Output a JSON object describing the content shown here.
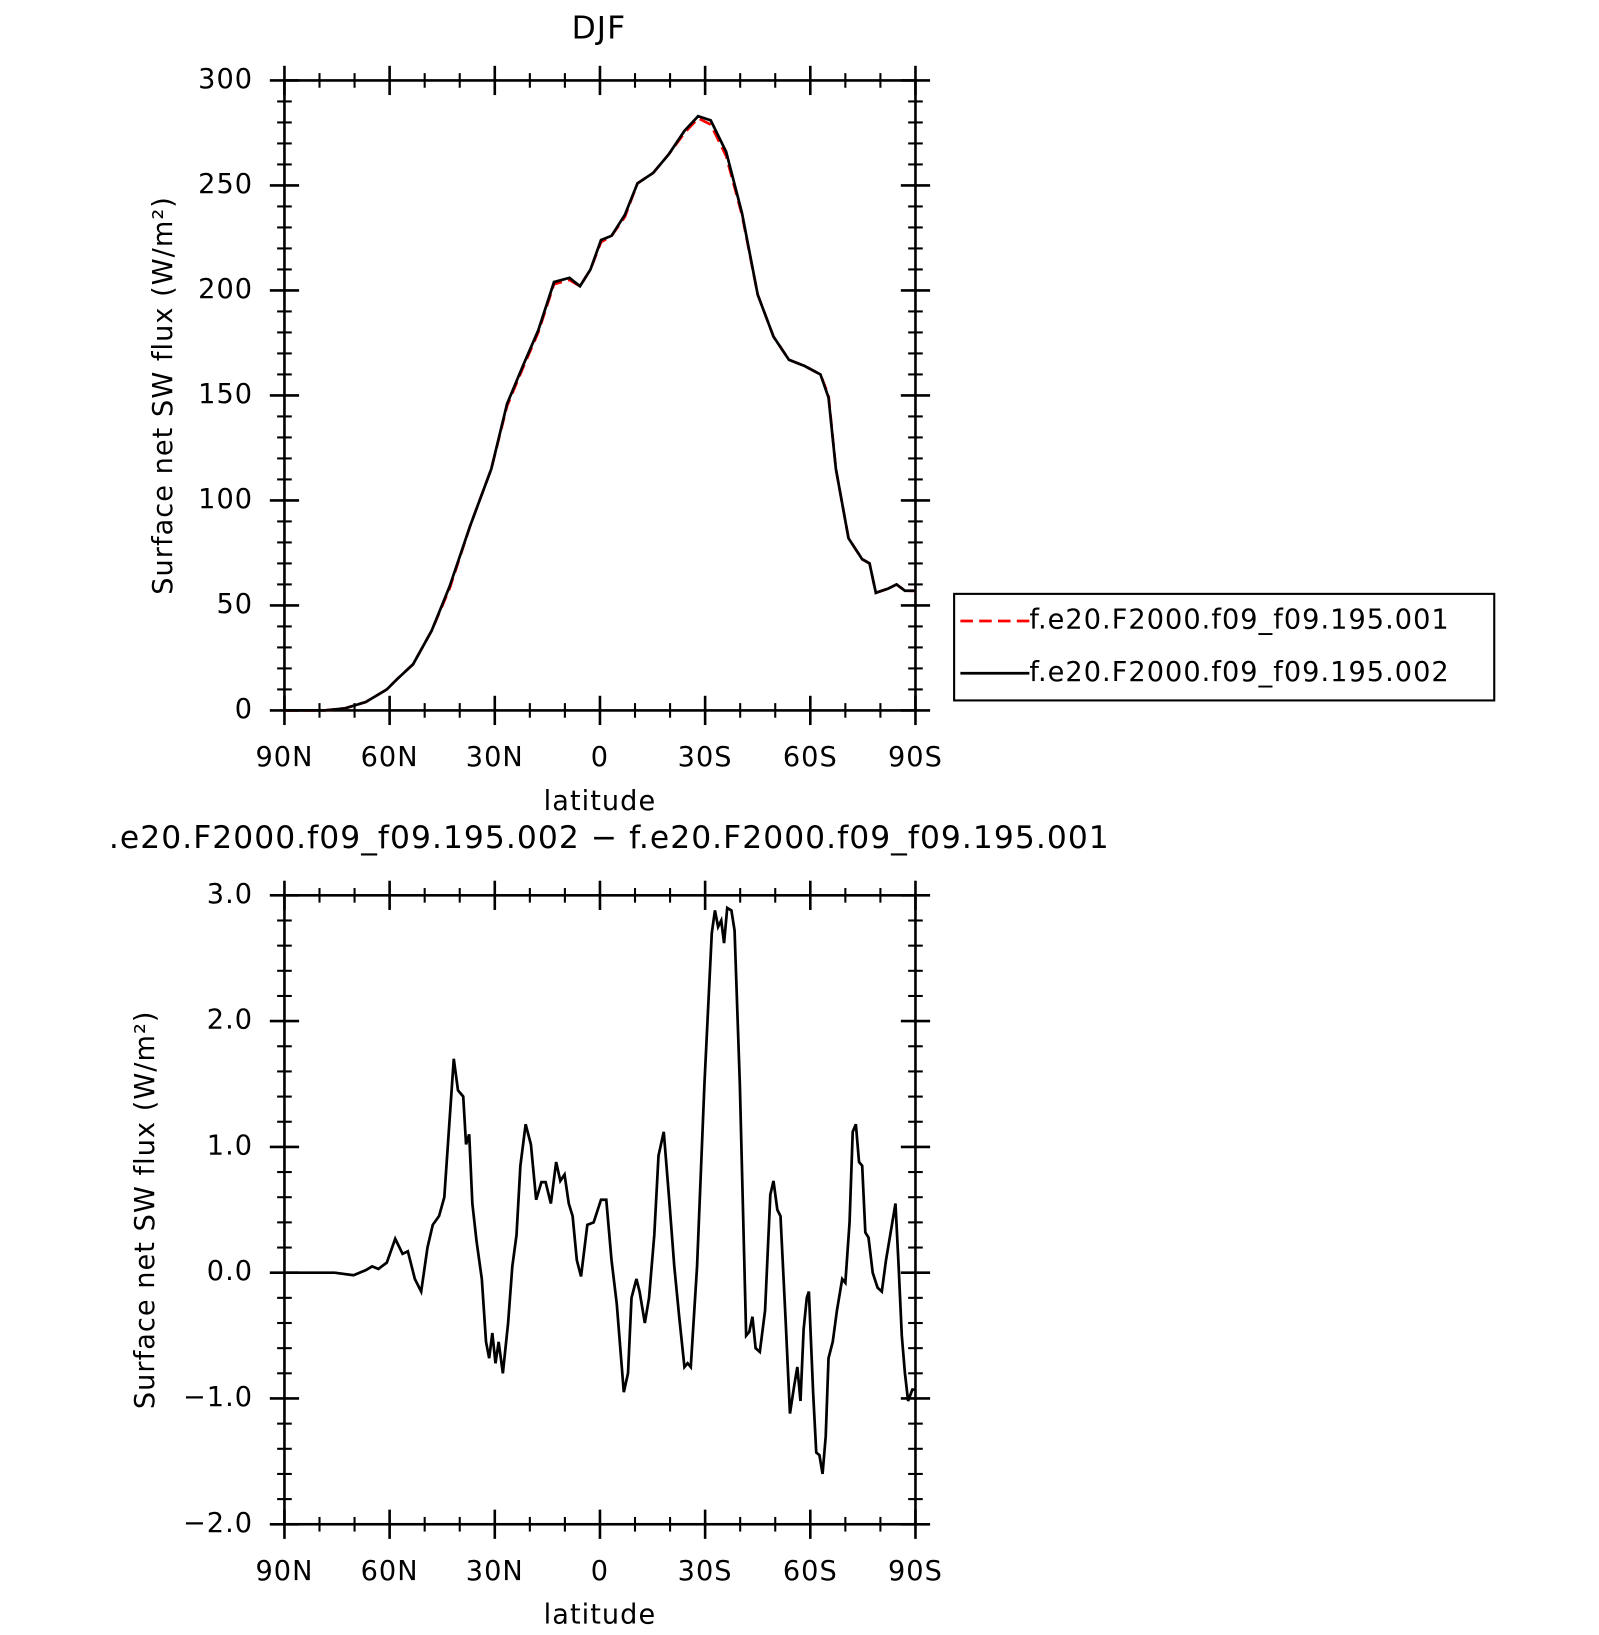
{
  "chart_data": [
    {
      "type": "line",
      "title": "DJF",
      "xlabel": "latitude",
      "ylabel": "Surface net SW flux (W/m²)",
      "x": [
        90,
        84,
        78.7,
        72.7,
        66.8,
        60.8,
        57.8,
        53.3,
        48,
        42.9,
        37,
        31,
        26.5,
        22,
        17.6,
        13.1,
        8.7,
        5.7,
        2.7,
        -0.3,
        -3.3,
        -7.1,
        -10.7,
        -15.2,
        -19.7,
        -24.1,
        -28,
        -31.6,
        -36,
        -40.5,
        -45,
        -49.5,
        -53.9,
        -58.4,
        -62.9,
        -65.2,
        -67.3,
        -70.9,
        -74.8,
        -76.9,
        -78.7,
        -82.2,
        -84.6,
        -87,
        -90
      ],
      "series": [
        {
          "name": "f.e20.F2000.f09_f09.195.001",
          "color": "#ff0000",
          "line_style": "dashed",
          "values": [
            0,
            0,
            0,
            1,
            4,
            10,
            15,
            22,
            38,
            58,
            88,
            115,
            145,
            163,
            180,
            203,
            205,
            202,
            210,
            223,
            226,
            235,
            251,
            256,
            265,
            275,
            282,
            279,
            264,
            236,
            198,
            178,
            167,
            164,
            160,
            150,
            115,
            82,
            72,
            70,
            56,
            58,
            60,
            57,
            57
          ]
        },
        {
          "name": "f.e20.F2000.f09_f09.195.002",
          "color": "#000000",
          "line_style": "solid",
          "values": [
            0,
            0,
            0,
            1,
            4,
            10,
            15,
            22,
            38,
            59,
            88,
            115,
            146,
            164,
            181,
            204,
            206,
            202,
            210,
            224,
            226,
            236,
            251,
            256,
            265,
            276,
            283,
            281,
            266,
            237,
            198,
            178,
            167,
            164,
            160,
            149,
            115,
            82,
            72,
            70,
            56,
            58,
            60,
            57,
            57
          ]
        }
      ],
      "xlim": [
        90,
        -90
      ],
      "xticks": [
        {
          "value": 90,
          "label": "90N"
        },
        {
          "value": 60,
          "label": "60N"
        },
        {
          "value": 30,
          "label": "30N"
        },
        0,
        {
          "value": -30,
          "label": "30S"
        },
        {
          "value": -60,
          "label": "60S"
        },
        {
          "value": -90,
          "label": "90S"
        }
      ],
      "ylim": [
        0,
        300
      ],
      "yticks": [
        0,
        50,
        100,
        150,
        200,
        250,
        300
      ],
      "legend": "right"
    },
    {
      "type": "line",
      "title": ".e20.F2000.f09_f09.195.002 − f.e20.F2000.f09_f09.195.001",
      "xlabel": "latitude",
      "ylabel": "Surface net SW flux (W/m²)",
      "x": [
        90,
        75.7,
        70.3,
        66.8,
        65,
        63.2,
        60.8,
        58.4,
        56.3,
        54.8,
        52.8,
        51,
        49.2,
        47.7,
        45.9,
        44.4,
        41.7,
        40.5,
        39,
        38.2,
        37.3,
        36.4,
        35.2,
        33.7,
        32.5,
        31.6,
        30.7,
        29.8,
        28.9,
        27.7,
        26.2,
        25,
        23.8,
        22.7,
        21.2,
        19.7,
        18.2,
        16.7,
        15.5,
        14,
        12.5,
        11.3,
        10.1,
        8.9,
        7.8,
        6.6,
        5.4,
        3.6,
        1.8,
        -0.3,
        -1.8,
        -3.3,
        -4.8,
        -6.8,
        -8,
        -9,
        -10.4,
        -11.3,
        -12.8,
        -14,
        -15.5,
        -16.7,
        -18.2,
        -19.7,
        -21.2,
        -22.6,
        -24.1,
        -25,
        -25.9,
        -27.7,
        -29.8,
        -31.9,
        -32.8,
        -33.7,
        -34.6,
        -35.4,
        -36.3,
        -37.5,
        -38.4,
        -39.9,
        -41.7,
        -42.6,
        -43.5,
        -44.4,
        -45.6,
        -47.1,
        -48.6,
        -49.5,
        -50.6,
        -51.5,
        -53,
        -54.2,
        -55.4,
        -56.3,
        -57.2,
        -58.1,
        -59,
        -59.6,
        -60.8,
        -61.7,
        -62.6,
        -63.5,
        -64.4,
        -65.2,
        -66.4,
        -67.6,
        -69.1,
        -70,
        -71.2,
        -72.1,
        -73,
        -73.9,
        -74.8,
        -75.7,
        -76.6,
        -77.8,
        -79.2,
        -80.4,
        -81.6,
        -83.1,
        -84.3,
        -85.2,
        -86.1,
        -87,
        -87.9,
        -89.1,
        -90
      ],
      "series": [
        {
          "color": "#000000",
          "line_style": "solid",
          "values": [
            0,
            0,
            -0.02,
            0.02,
            0.05,
            0.03,
            0.08,
            0.27,
            0.15,
            0.17,
            -0.05,
            -0.15,
            0.2,
            0.38,
            0.45,
            0.6,
            1.7,
            1.45,
            1.4,
            1.02,
            1.1,
            0.55,
            0.25,
            -0.05,
            -0.55,
            -0.68,
            -0.48,
            -0.72,
            -0.55,
            -0.8,
            -0.4,
            0.05,
            0.3,
            0.85,
            1.18,
            1.02,
            0.58,
            0.72,
            0.72,
            0.55,
            0.88,
            0.73,
            0.78,
            0.55,
            0.45,
            0.1,
            -0.03,
            0.38,
            0.4,
            0.58,
            0.58,
            0.1,
            -0.25,
            -0.95,
            -0.8,
            -0.2,
            -0.05,
            -0.15,
            -0.4,
            -0.2,
            0.3,
            0.93,
            1.12,
            0.6,
            0.05,
            -0.35,
            -0.75,
            -0.72,
            -0.75,
            0.05,
            1.5,
            2.7,
            2.88,
            2.75,
            2.8,
            2.62,
            2.9,
            2.88,
            2.72,
            1.5,
            -0.5,
            -0.47,
            -0.35,
            -0.6,
            -0.63,
            -0.3,
            0.62,
            0.73,
            0.5,
            0.45,
            -0.4,
            -1.12,
            -0.9,
            -0.75,
            -1.02,
            -0.45,
            -0.2,
            -0.15,
            -0.95,
            -1.43,
            -1.45,
            -1.6,
            -1.3,
            -0.68,
            -0.55,
            -0.3,
            -0.05,
            -0.08,
            0.4,
            1.12,
            1.18,
            0.88,
            0.85,
            0.32,
            0.28,
            0,
            -0.12,
            -0.15,
            0.1,
            0.35,
            0.55,
            0.05,
            -0.5,
            -0.8,
            -1.02,
            -0.93,
            -0.93
          ]
        }
      ],
      "xlim": [
        90,
        -90
      ],
      "xticks": [
        {
          "value": 90,
          "label": "90N"
        },
        {
          "value": 60,
          "label": "60N"
        },
        {
          "value": 30,
          "label": "30N"
        },
        0,
        {
          "value": -30,
          "label": "30S"
        },
        {
          "value": -60,
          "label": "60S"
        },
        {
          "value": -90,
          "label": "90S"
        }
      ],
      "ylim": [
        -2,
        3
      ],
      "yticks": [
        {
          "value": 3,
          "label": "3.0"
        },
        {
          "value": 2,
          "label": "2.0"
        },
        {
          "value": 1,
          "label": "1.0"
        },
        {
          "value": 0,
          "label": "0.0"
        },
        {
          "value": -1,
          "label": "−1.0"
        },
        {
          "value": -2,
          "label": "−2.0"
        }
      ]
    }
  ]
}
